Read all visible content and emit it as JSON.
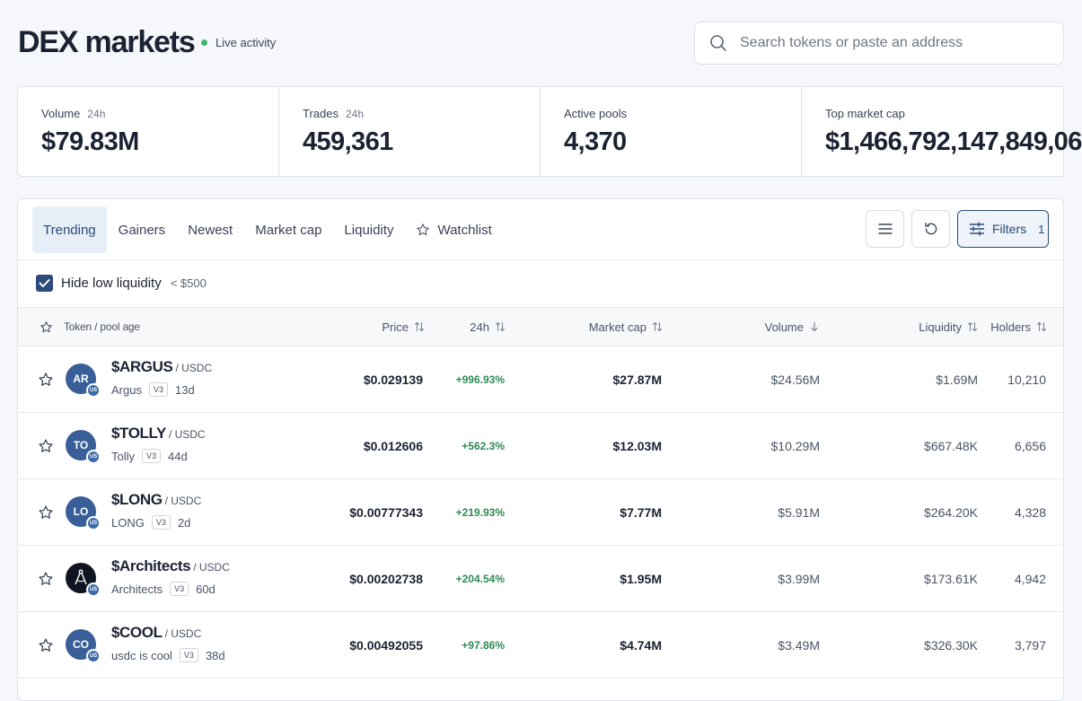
{
  "header": {
    "title": "DEX markets",
    "live_label": "Live activity",
    "search_placeholder": "Search tokens or paste an address"
  },
  "stats": [
    {
      "label": "Volume",
      "sub": "24h",
      "value": "$79.83M"
    },
    {
      "label": "Trades",
      "sub": "24h",
      "value": "459,361"
    },
    {
      "label": "Active pools",
      "sub": "",
      "value": "4,370"
    },
    {
      "label": "Top market cap",
      "sub": "",
      "value": "$1,466,792,147,849,06"
    }
  ],
  "tabs": [
    "Trending",
    "Gainers",
    "Newest",
    "Market cap",
    "Liquidity",
    "Watchlist"
  ],
  "active_tab": "Trending",
  "toolbar": {
    "filters_label": "Filters",
    "filters_count": "1"
  },
  "low_liquidity": {
    "label": "Hide low liquidity",
    "threshold": "< $500",
    "checked": true
  },
  "columns": {
    "token": "Token / pool age",
    "price": "Price",
    "change": "24h",
    "market_cap": "Market cap",
    "volume": "Volume",
    "liquidity": "Liquidity",
    "holders": "Holders"
  },
  "rows": [
    {
      "initials": "AR",
      "symbol": "$ARGUS",
      "pair": "/ USDC",
      "name": "Argus",
      "version": "V3",
      "age": "13d",
      "price": "$0.029139",
      "change": "+996.93%",
      "market_cap": "$27.87M",
      "volume": "$24.56M",
      "liquidity": "$1.69M",
      "holders": "10,210"
    },
    {
      "initials": "TO",
      "symbol": "$TOLLY",
      "pair": "/ USDC",
      "name": "Tolly",
      "version": "V3",
      "age": "44d",
      "price": "$0.012606",
      "change": "+562.3%",
      "market_cap": "$12.03M",
      "volume": "$10.29M",
      "liquidity": "$667.48K",
      "holders": "6,656"
    },
    {
      "initials": "LO",
      "symbol": "$LONG",
      "pair": "/ USDC",
      "name": "LONG",
      "version": "V3",
      "age": "2d",
      "price": "$0.00777343",
      "change": "+219.93%",
      "market_cap": "$7.77M",
      "volume": "$5.91M",
      "liquidity": "$264.20K",
      "holders": "4,328"
    },
    {
      "initials": "",
      "symbol": "$Architects",
      "pair": "/ USDC",
      "name": "Architects",
      "version": "V3",
      "age": "60d",
      "price": "$0.00202738",
      "change": "+204.54%",
      "market_cap": "$1.95M",
      "volume": "$3.99M",
      "liquidity": "$173.61K",
      "holders": "4,942"
    },
    {
      "initials": "CO",
      "symbol": "$COOL",
      "pair": "/ USDC",
      "name": "usdc is cool",
      "version": "V3",
      "age": "38d",
      "price": "$0.00492055",
      "change": "+97.86%",
      "market_cap": "$4.74M",
      "volume": "$3.49M",
      "liquidity": "$326.30K",
      "holders": "3,797"
    }
  ],
  "badge_text": "US",
  "colors": {
    "accent": "#2b4a76",
    "positive": "#2e8a55",
    "live": "#3fb46e"
  }
}
